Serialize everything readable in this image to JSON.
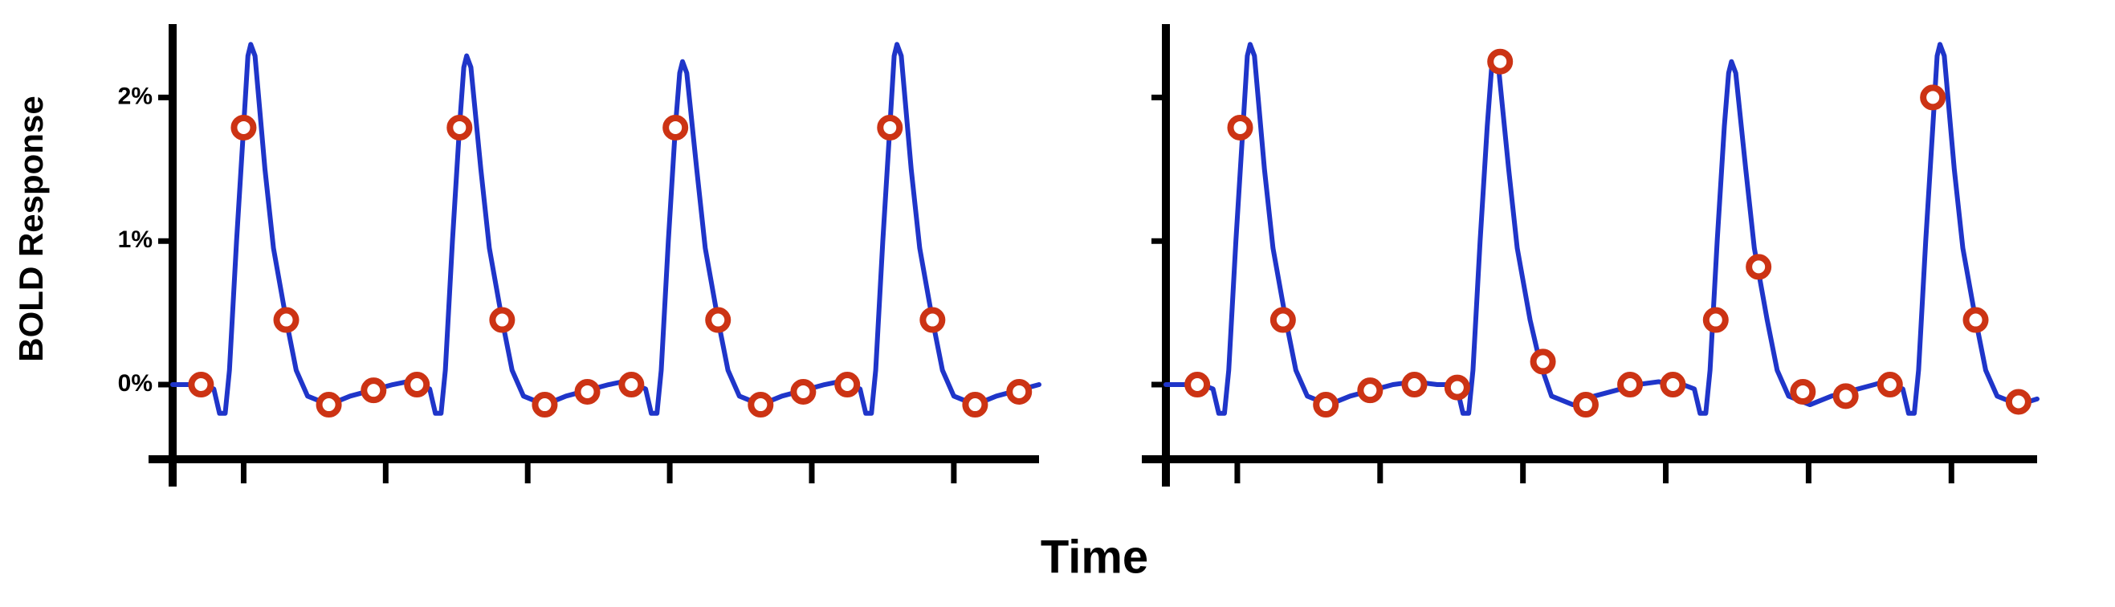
{
  "xlabel": "Time",
  "ylabel": "BOLD Response",
  "chart_data": [
    {
      "type": "line",
      "xlim": [
        0,
        61
      ],
      "ylim": [
        -0.52,
        2.5
      ],
      "xticks": [
        5,
        15,
        25,
        35,
        45,
        55
      ],
      "show_xtick_labels": false,
      "yticks": [
        {
          "value": 0,
          "label": "0%"
        },
        {
          "value": 1,
          "label": "1%"
        },
        {
          "value": 2,
          "label": "2%"
        }
      ],
      "show_ytick_labels": true,
      "series": [
        {
          "style": "line",
          "color": "#1f35c9",
          "x": [
            0,
            2.1,
            2.9,
            3.3,
            3.7,
            4.0,
            4.5,
            5.0,
            5.3,
            5.5,
            5.8,
            6.5,
            7.1,
            8.0,
            8.7,
            9.5,
            11.0,
            12.5,
            14.0,
            15.5,
            16.5,
            17.0,
            17.3,
            18.1,
            18.5,
            18.9,
            19.2,
            19.7,
            20.2,
            20.5,
            20.7,
            21.0,
            21.7,
            22.3,
            23.2,
            23.9,
            24.7,
            26.2,
            27.7,
            29.2,
            30.7,
            31.7,
            32.2,
            32.5,
            33.3,
            33.7,
            34.1,
            34.4,
            34.9,
            35.4,
            35.7,
            35.9,
            36.2,
            36.9,
            37.5,
            38.4,
            39.1,
            39.9,
            41.4,
            42.9,
            44.4,
            45.9,
            46.9,
            47.4,
            47.6,
            48.4,
            48.8,
            49.2,
            49.5,
            50.0,
            50.5,
            50.8,
            51.0,
            51.3,
            52.0,
            52.6,
            53.5,
            54.2,
            55.0,
            56.5,
            58.0,
            59.5,
            61.0
          ],
          "values": [
            0,
            0,
            -0.03,
            -0.2,
            -0.2,
            0.1,
            1.0,
            1.8,
            2.29,
            2.37,
            2.29,
            1.5,
            0.95,
            0.45,
            0.1,
            -0.08,
            -0.14,
            -0.08,
            -0.04,
            0,
            0.02,
            0,
            0,
            -0.03,
            -0.2,
            -0.2,
            0.1,
            1.0,
            1.8,
            2.21,
            2.29,
            2.21,
            1.5,
            0.95,
            0.45,
            0.1,
            -0.08,
            -0.14,
            -0.08,
            -0.04,
            0,
            0.02,
            0,
            0,
            -0.03,
            -0.2,
            -0.2,
            0.1,
            1.0,
            1.8,
            2.17,
            2.25,
            2.17,
            1.5,
            0.95,
            0.45,
            0.1,
            -0.08,
            -0.14,
            -0.08,
            -0.04,
            0,
            0.02,
            0,
            0,
            -0.03,
            -0.2,
            -0.2,
            0.1,
            1.0,
            1.8,
            2.29,
            2.37,
            2.29,
            1.5,
            0.95,
            0.45,
            0.1,
            -0.08,
            -0.14,
            -0.08,
            -0.04,
            0
          ]
        },
        {
          "style": "markers",
          "color": "#cc3314",
          "x": [
            2.0,
            5.0,
            8.0,
            11.0,
            14.15,
            17.2,
            20.2,
            23.2,
            26.2,
            29.2,
            32.3,
            35.4,
            38.4,
            41.4,
            44.4,
            47.5,
            50.5,
            53.5,
            56.5,
            59.6
          ],
          "values": [
            0,
            1.79,
            0.45,
            -0.14,
            -0.04,
            0,
            1.79,
            0.45,
            -0.14,
            -0.05,
            0,
            1.79,
            0.45,
            -0.14,
            -0.05,
            0,
            1.79,
            0.45,
            -0.14,
            -0.05
          ]
        }
      ]
    },
    {
      "type": "line",
      "xlim": [
        0,
        61
      ],
      "ylim": [
        -0.52,
        2.5
      ],
      "xticks": [
        5,
        15,
        25,
        35,
        45,
        55
      ],
      "show_xtick_labels": false,
      "yticks": [
        0,
        1,
        2
      ],
      "show_ytick_labels": false,
      "series": [
        {
          "style": "line",
          "color": "#1f35c9",
          "x": [
            0,
            2.5,
            3.3,
            3.7,
            4.1,
            4.4,
            4.9,
            5.4,
            5.7,
            5.9,
            6.2,
            6.9,
            7.5,
            8.4,
            9.1,
            9.9,
            11.4,
            12.9,
            14.4,
            15.9,
            17.4,
            19.0,
            19.6,
            20.4,
            20.8,
            21.2,
            21.5,
            22.0,
            22.5,
            22.8,
            23.0,
            23.3,
            24.0,
            24.6,
            25.5,
            26.2,
            27.0,
            28.5,
            30.0,
            31.5,
            33.0,
            34.5,
            35.6,
            36.2,
            37.0,
            37.4,
            37.8,
            38.1,
            38.6,
            39.1,
            39.4,
            39.6,
            39.9,
            40.6,
            41.2,
            42.1,
            42.8,
            43.6,
            45.1,
            46.6,
            48.1,
            49.6,
            50.3,
            50.8,
            51.6,
            52.0,
            52.4,
            52.7,
            53.2,
            53.7,
            54.0,
            54.2,
            54.5,
            55.2,
            55.8,
            56.7,
            57.4,
            58.2,
            59.7,
            61.0
          ],
          "values": [
            0,
            0,
            -0.03,
            -0.2,
            -0.2,
            0.1,
            1.0,
            1.8,
            2.29,
            2.37,
            2.29,
            1.5,
            0.95,
            0.45,
            0.1,
            -0.08,
            -0.14,
            -0.08,
            -0.04,
            0,
            0.02,
            0,
            0,
            -0.03,
            -0.2,
            -0.2,
            0.1,
            1.0,
            1.8,
            2.2,
            2.28,
            2.2,
            1.5,
            0.95,
            0.45,
            0.15,
            -0.08,
            -0.14,
            -0.08,
            -0.04,
            0,
            0.02,
            0,
            0,
            -0.03,
            -0.2,
            -0.2,
            0.1,
            1.0,
            1.8,
            2.17,
            2.25,
            2.17,
            1.5,
            0.95,
            0.45,
            0.1,
            -0.08,
            -0.14,
            -0.08,
            -0.04,
            0,
            0.02,
            0,
            -0.03,
            -0.2,
            -0.2,
            0.1,
            1.0,
            1.8,
            2.29,
            2.37,
            2.29,
            1.5,
            0.95,
            0.45,
            0.1,
            -0.08,
            -0.14,
            -0.1
          ]
        },
        {
          "style": "markers",
          "color": "#cc3314",
          "x": [
            2.2,
            5.2,
            8.2,
            11.2,
            14.3,
            17.4,
            20.4,
            23.4,
            26.4,
            29.4,
            32.5,
            35.5,
            38.5,
            41.5,
            44.6,
            47.6,
            50.7,
            53.7,
            56.7,
            59.7
          ],
          "values": [
            0,
            1.79,
            0.45,
            -0.14,
            -0.04,
            0,
            -0.02,
            2.25,
            0.16,
            -0.14,
            0,
            0,
            0.45,
            0.82,
            -0.05,
            -0.08,
            0,
            2.0,
            0.45,
            -0.12
          ]
        }
      ]
    }
  ]
}
